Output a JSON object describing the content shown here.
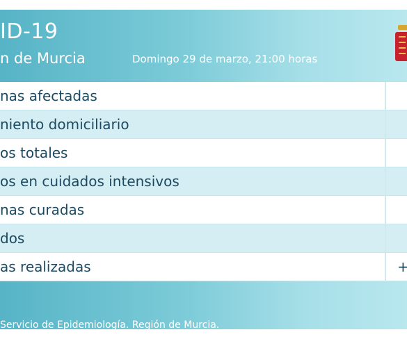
{
  "header": {
    "title": "ID-19",
    "subtitle": "n de Murcia",
    "datetime": "Domingo 29 de marzo, 21:00 horas"
  },
  "rows": [
    {
      "label": "nas afectadas",
      "value": ""
    },
    {
      "label": "niento domiciliario",
      "value": ""
    },
    {
      "label": "os totales",
      "value": ""
    },
    {
      "label": "os en cuidados intensivos",
      "value": ""
    },
    {
      "label": "nas curadas",
      "value": ""
    },
    {
      "label": "dos",
      "value": ""
    },
    {
      "label": "as realizadas",
      "value": "+"
    }
  ],
  "footer": {
    "source": "Servicio de Epidemiología. Región de Murcia."
  },
  "colors": {
    "header_gradient_start": "#56b4c6",
    "header_gradient_end": "#b9e7ee",
    "row_white": "#ffffff",
    "row_blue": "#d5eef3",
    "text_dark": "#1d4a63",
    "logo_red": "#c8202f",
    "logo_gold": "#d7a630"
  }
}
